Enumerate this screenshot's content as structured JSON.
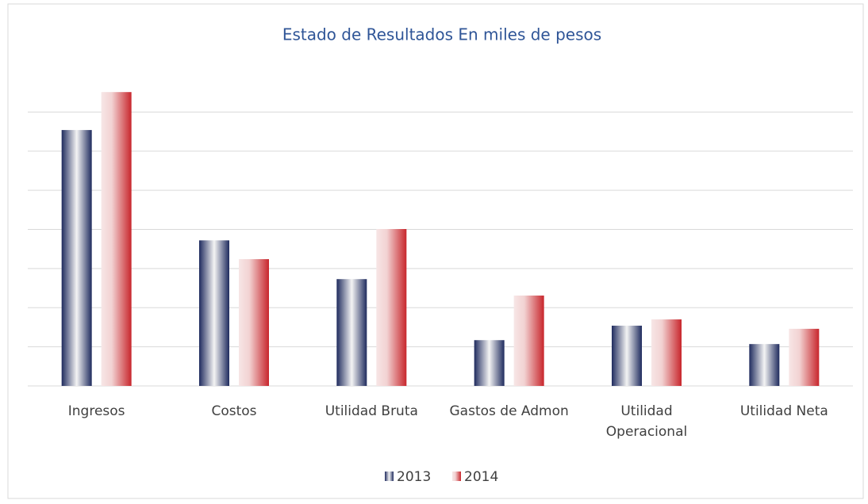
{
  "chart_data": {
    "type": "bar",
    "title": "Estado de Resultados En miles de pesos",
    "categories": [
      "Ingresos",
      "Costos",
      "Utilidad Bruta",
      "Gastos de Admon",
      "Utilidad Operacional",
      "Utilidad Neta"
    ],
    "series": [
      {
        "name": "2013",
        "color": "#1f2b5e",
        "values": [
          6.54,
          3.72,
          2.73,
          1.17,
          1.54,
          1.07
        ]
      },
      {
        "name": "2014",
        "color": "#c8262c",
        "values": [
          7.51,
          3.24,
          4.01,
          2.31,
          1.7,
          1.46
        ]
      }
    ],
    "ylim": [
      0,
      8
    ],
    "yticks": [
      0,
      1,
      2,
      3,
      4,
      5,
      6,
      7
    ],
    "grid": true
  }
}
